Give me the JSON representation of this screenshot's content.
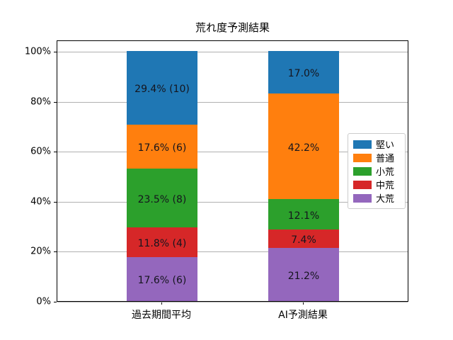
{
  "chart_data": {
    "type": "bar",
    "stacked": true,
    "title": "荒れ度予測結果",
    "categories": [
      "過去期間平均",
      "AI予測結果"
    ],
    "series": [
      {
        "name": "大荒",
        "color": "#9467bd",
        "values": [
          17.6,
          21.2
        ],
        "labels": [
          "17.6% (6)",
          "21.2%"
        ]
      },
      {
        "name": "中荒",
        "color": "#d62728",
        "values": [
          11.8,
          7.4
        ],
        "labels": [
          "11.8% (4)",
          "7.4%"
        ]
      },
      {
        "name": "小荒",
        "color": "#2ca02c",
        "values": [
          23.5,
          12.1
        ],
        "labels": [
          "23.5% (8)",
          "12.1%"
        ]
      },
      {
        "name": "普通",
        "color": "#ff7f0e",
        "values": [
          17.6,
          42.2
        ],
        "labels": [
          "17.6% (6)",
          "42.2%"
        ]
      },
      {
        "name": "堅い",
        "color": "#1f77b4",
        "values": [
          29.4,
          17.0
        ],
        "labels": [
          "29.4% (10)",
          "17.0%"
        ]
      }
    ],
    "legend": {
      "entries": [
        "堅い",
        "普通",
        "小荒",
        "中荒",
        "大荒"
      ],
      "position": "center right"
    },
    "y_ticks": [
      {
        "pct": 0,
        "label": "0%"
      },
      {
        "pct": 20,
        "label": "20%"
      },
      {
        "pct": 40,
        "label": "40%"
      },
      {
        "pct": 60,
        "label": "60%"
      },
      {
        "pct": 80,
        "label": "80%"
      },
      {
        "pct": 100,
        "label": "100%"
      }
    ],
    "ylim": [
      0,
      104.5
    ],
    "grid": true,
    "grid_color": "#b0b0b0",
    "axis_color": "#000000",
    "label_text_color": "#15151e"
  }
}
